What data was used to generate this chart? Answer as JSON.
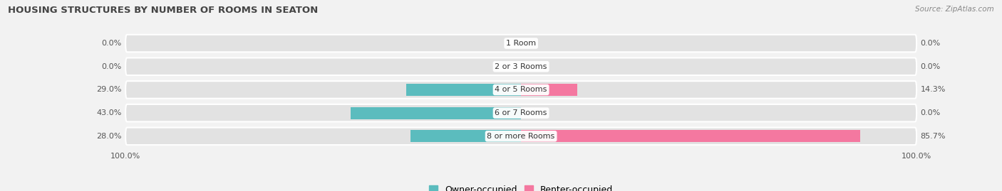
{
  "title": "HOUSING STRUCTURES BY NUMBER OF ROOMS IN SEATON",
  "source": "Source: ZipAtlas.com",
  "categories": [
    "1 Room",
    "2 or 3 Rooms",
    "4 or 5 Rooms",
    "6 or 7 Rooms",
    "8 or more Rooms"
  ],
  "owner_values": [
    0.0,
    0.0,
    29.0,
    43.0,
    28.0
  ],
  "renter_values": [
    0.0,
    0.0,
    14.3,
    0.0,
    85.7
  ],
  "owner_color": "#5bbcbe",
  "renter_color": "#f478a0",
  "bar_height": 0.52,
  "bg_bar_height": 0.75,
  "xlim": 100,
  "bg_color": "#f2f2f2",
  "bar_bg_color": "#e2e2e2",
  "title_fontsize": 9.5,
  "label_fontsize": 8,
  "tick_fontsize": 8,
  "legend_fontsize": 9,
  "source_fontsize": 7.5
}
